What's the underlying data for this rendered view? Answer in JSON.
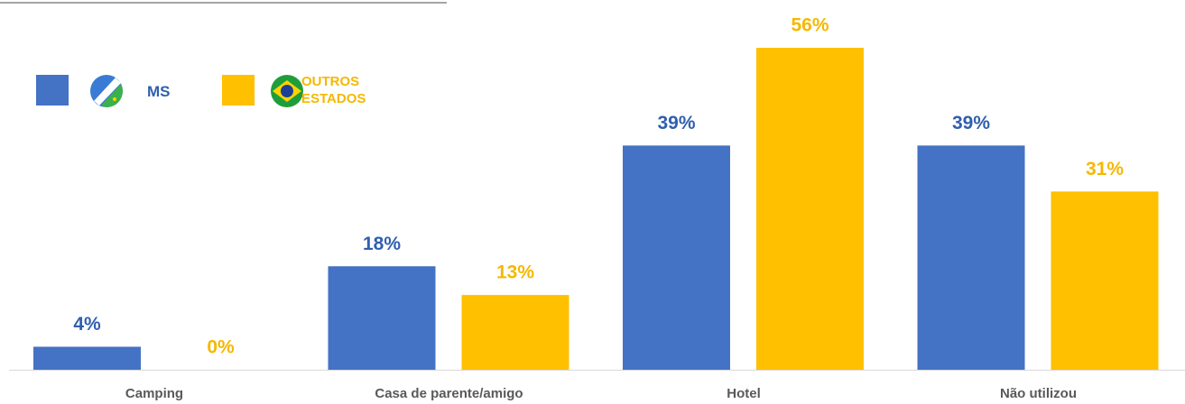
{
  "chart_data": {
    "type": "bar",
    "categories": [
      "Camping",
      "Casa de parente/amigo",
      "Hotel",
      "Não utilizou"
    ],
    "series": [
      {
        "name": "MS",
        "color": "#4472c4",
        "label_color": "#2f5fae",
        "values": [
          4,
          18,
          39,
          39
        ],
        "value_labels": [
          "4%",
          "18%",
          "39%",
          "39%"
        ]
      },
      {
        "name": "OUTROS ESTADOS",
        "color": "#ffc000",
        "label_color": "#f5b800",
        "values": [
          0,
          13,
          56,
          31
        ],
        "value_labels": [
          "0%",
          "13%",
          "56%",
          "31%"
        ]
      }
    ]
  }
}
